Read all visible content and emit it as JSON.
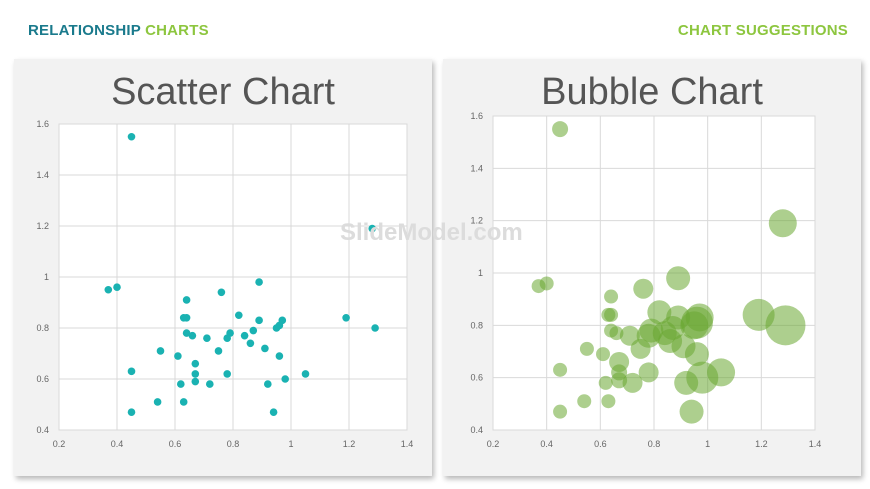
{
  "header": {
    "left_a": "RELATIONSHIP",
    "left_b": "CHARTS",
    "right": "CHART SUGGESTIONS"
  },
  "watermark": "SlideModel.com",
  "chart_data": [
    {
      "type": "scatter",
      "title": "Scatter Chart",
      "xlabel": "",
      "ylabel": "",
      "xlim": [
        0.2,
        1.4
      ],
      "ylim": [
        0.4,
        1.6
      ],
      "xticks": [
        "0.2",
        "0.4",
        "0.6",
        "0.8",
        "1",
        "1.2",
        "1.4"
      ],
      "yticks": [
        "0.4",
        "0.6",
        "0.8",
        "1",
        "1.2",
        "1.4",
        "1.6"
      ],
      "grid": true,
      "color": "#1ab2b2",
      "points": [
        [
          0.45,
          1.55
        ],
        [
          0.37,
          0.95
        ],
        [
          0.4,
          0.96
        ],
        [
          1.28,
          1.19
        ],
        [
          0.89,
          0.98
        ],
        [
          0.76,
          0.94
        ],
        [
          0.64,
          0.91
        ],
        [
          0.63,
          0.84
        ],
        [
          0.64,
          0.84
        ],
        [
          0.82,
          0.85
        ],
        [
          1.19,
          0.84
        ],
        [
          1.29,
          0.8
        ],
        [
          0.97,
          0.83
        ],
        [
          0.89,
          0.83
        ],
        [
          0.96,
          0.81
        ],
        [
          0.95,
          0.8
        ],
        [
          0.87,
          0.79
        ],
        [
          0.64,
          0.78
        ],
        [
          0.66,
          0.77
        ],
        [
          0.71,
          0.76
        ],
        [
          0.79,
          0.78
        ],
        [
          0.78,
          0.76
        ],
        [
          0.84,
          0.77
        ],
        [
          0.86,
          0.74
        ],
        [
          0.55,
          0.71
        ],
        [
          0.75,
          0.71
        ],
        [
          0.91,
          0.72
        ],
        [
          0.61,
          0.69
        ],
        [
          0.96,
          0.69
        ],
        [
          0.67,
          0.66
        ],
        [
          0.45,
          0.63
        ],
        [
          0.67,
          0.62
        ],
        [
          0.78,
          0.62
        ],
        [
          1.05,
          0.62
        ],
        [
          0.67,
          0.59
        ],
        [
          0.62,
          0.58
        ],
        [
          0.72,
          0.58
        ],
        [
          0.92,
          0.58
        ],
        [
          0.98,
          0.6
        ],
        [
          0.54,
          0.51
        ],
        [
          0.63,
          0.51
        ],
        [
          0.45,
          0.47
        ],
        [
          0.94,
          0.47
        ]
      ]
    },
    {
      "type": "scatter",
      "title": "Bubble Chart",
      "xlabel": "",
      "ylabel": "",
      "xlim": [
        0.2,
        1.4
      ],
      "ylim": [
        0.4,
        1.6
      ],
      "xticks": [
        "0.2",
        "0.4",
        "0.6",
        "0.8",
        "1",
        "1.2",
        "1.4"
      ],
      "yticks": [
        "0.4",
        "0.6",
        "0.8",
        "1",
        "1.2",
        "1.4",
        "1.6"
      ],
      "grid": true,
      "color": "#6aa832",
      "bubbles": [
        [
          0.45,
          1.55,
          4
        ],
        [
          1.28,
          1.19,
          7
        ],
        [
          0.37,
          0.95,
          3.5
        ],
        [
          0.4,
          0.96,
          3.5
        ],
        [
          0.89,
          0.98,
          6
        ],
        [
          0.76,
          0.94,
          5
        ],
        [
          0.64,
          0.91,
          3.5
        ],
        [
          0.63,
          0.84,
          3.5
        ],
        [
          0.64,
          0.84,
          3.5
        ],
        [
          0.82,
          0.85,
          6
        ],
        [
          1.19,
          0.84,
          8
        ],
        [
          1.29,
          0.8,
          10
        ],
        [
          0.97,
          0.83,
          7
        ],
        [
          0.89,
          0.83,
          6
        ],
        [
          0.96,
          0.81,
          8
        ],
        [
          0.95,
          0.8,
          7
        ],
        [
          0.87,
          0.79,
          6
        ],
        [
          0.64,
          0.78,
          3.5
        ],
        [
          0.66,
          0.77,
          3.5
        ],
        [
          0.71,
          0.76,
          5
        ],
        [
          0.79,
          0.78,
          6
        ],
        [
          0.78,
          0.76,
          6
        ],
        [
          0.84,
          0.77,
          6
        ],
        [
          0.86,
          0.74,
          6
        ],
        [
          0.55,
          0.71,
          3.5
        ],
        [
          0.75,
          0.71,
          5
        ],
        [
          0.91,
          0.72,
          6
        ],
        [
          0.61,
          0.69,
          3.5
        ],
        [
          0.96,
          0.69,
          6
        ],
        [
          0.67,
          0.66,
          5
        ],
        [
          0.45,
          0.63,
          3.5
        ],
        [
          0.67,
          0.62,
          4
        ],
        [
          0.78,
          0.62,
          5
        ],
        [
          1.05,
          0.62,
          7
        ],
        [
          0.67,
          0.59,
          4
        ],
        [
          0.62,
          0.58,
          3.5
        ],
        [
          0.72,
          0.58,
          5
        ],
        [
          0.92,
          0.58,
          6
        ],
        [
          0.98,
          0.6,
          8
        ],
        [
          0.54,
          0.51,
          3.5
        ],
        [
          0.63,
          0.51,
          3.5
        ],
        [
          0.45,
          0.47,
          3.5
        ],
        [
          0.94,
          0.47,
          6
        ]
      ]
    }
  ]
}
